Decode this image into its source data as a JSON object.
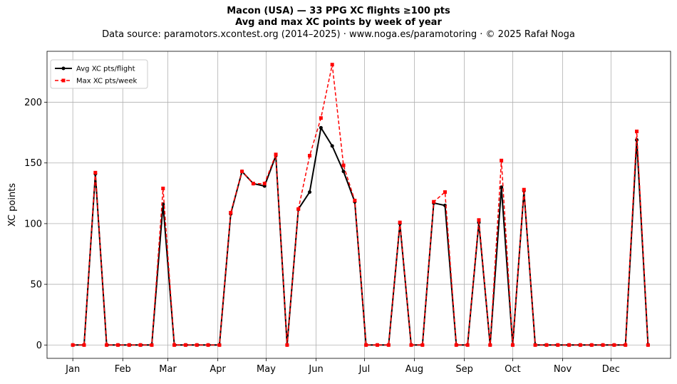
{
  "header": {
    "title": "Macon (USA)  —  33 PPG XC flights ≥100 pts",
    "subtitle": "Avg and max XC points by week of year",
    "source": "Data source: paramotors.xcontest.org (2014–2025)  ·  www.noga.es/paramotoring  ·  © 2025 Rafał Noga"
  },
  "colors": {
    "avg": "#000000",
    "max": "#ff0000",
    "grid": "#b0b0b0"
  },
  "chart_data": {
    "type": "line",
    "title": "Macon (USA)  —  33 PPG XC flights ≥100 pts",
    "subtitle": "Avg and max XC points by week of year",
    "xlabel": "",
    "ylabel": "XC points",
    "x_unit": "day of year",
    "ylim": [
      -11,
      242
    ],
    "xlim": [
      -15,
      372
    ],
    "grid": true,
    "legend_position": "top-left",
    "x_ticks": [
      {
        "label": "Jan",
        "x": 1
      },
      {
        "label": "Feb",
        "x": 32
      },
      {
        "label": "Mar",
        "x": 60
      },
      {
        "label": "Apr",
        "x": 91
      },
      {
        "label": "May",
        "x": 121
      },
      {
        "label": "Jun",
        "x": 152
      },
      {
        "label": "Jul",
        "x": 182
      },
      {
        "label": "Aug",
        "x": 213
      },
      {
        "label": "Sep",
        "x": 244
      },
      {
        "label": "Oct",
        "x": 274
      },
      {
        "label": "Nov",
        "x": 305
      },
      {
        "label": "Dec",
        "x": 335
      }
    ],
    "y_ticks": [
      0,
      50,
      100,
      150,
      200
    ],
    "x": [
      1,
      8,
      15,
      22,
      29,
      36,
      43,
      50,
      57,
      64,
      71,
      78,
      85,
      92,
      99,
      106,
      113,
      120,
      127,
      134,
      141,
      148,
      155,
      162,
      169,
      176,
      183,
      190,
      197,
      204,
      211,
      218,
      225,
      232,
      239,
      246,
      253,
      260,
      267,
      274,
      281,
      288,
      295,
      302,
      309,
      316,
      323,
      330,
      337,
      344,
      351,
      358
    ],
    "series": [
      {
        "name": "Avg XC pts/flight",
        "color": "#000000",
        "style": "solid",
        "marker": "circle",
        "values": [
          0,
          0,
          141,
          0,
          0,
          0,
          0,
          0,
          116,
          0,
          0,
          0,
          0,
          0,
          108,
          143,
          133,
          131,
          156,
          0,
          112,
          126,
          179,
          164,
          143,
          118,
          0,
          0,
          0,
          100,
          0,
          0,
          117,
          115,
          0,
          0,
          101,
          0,
          130,
          0,
          127,
          0,
          0,
          0,
          0,
          0,
          0,
          0,
          0,
          0,
          169,
          0
        ]
      },
      {
        "name": "Max XC pts/week",
        "color": "#ff0000",
        "style": "dashed",
        "marker": "square",
        "values": [
          0,
          0,
          142,
          0,
          0,
          0,
          0,
          0,
          129,
          0,
          0,
          0,
          0,
          0,
          109,
          143,
          133,
          133,
          157,
          0,
          112,
          156,
          187,
          231,
          148,
          119,
          0,
          0,
          0,
          101,
          0,
          0,
          118,
          126,
          0,
          0,
          103,
          0,
          152,
          0,
          128,
          0,
          0,
          0,
          0,
          0,
          0,
          0,
          0,
          0,
          176,
          0
        ]
      }
    ]
  }
}
